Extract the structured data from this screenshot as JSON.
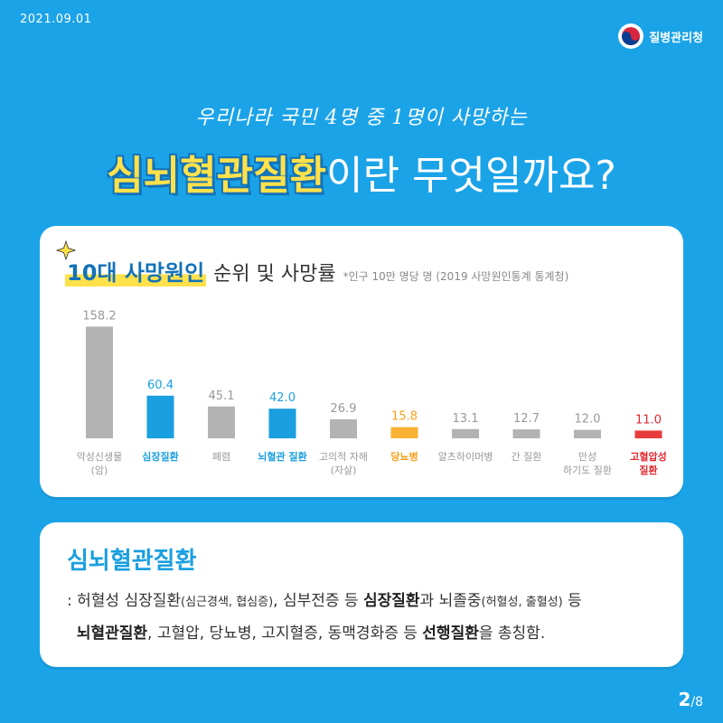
{
  "header": {
    "date": "2021.09.01",
    "org": "질병관리청"
  },
  "hero": {
    "subtitle": "우리나라 국민 4명 중 1명이 사망하는",
    "title_highlight": "심뇌혈관질환",
    "title_rest": "이란 무엇일까요?"
  },
  "chart_card": {
    "heading_highlight": "10대 사망원인",
    "heading_rest": "순위 및 사망률",
    "heading_note": "*인구 10만 명당 명 (2019 사망원인통계 통계청)"
  },
  "chart_data": {
    "type": "bar",
    "categories": [
      "악성신생물 (암)",
      "심장질환",
      "폐렴",
      "뇌혈관 질환",
      "고의적 자해 (자살)",
      "당뇨병",
      "알츠하이머병",
      "간 질환",
      "만성 하기도 질환",
      "고혈압성 질환"
    ],
    "category_lines": [
      [
        "악성신생물",
        "(암)"
      ],
      [
        "심장질환"
      ],
      [
        "폐렴"
      ],
      [
        "뇌혈관 질환"
      ],
      [
        "고의적 자해",
        "(자살)"
      ],
      [
        "당뇨병"
      ],
      [
        "알츠하이머병"
      ],
      [
        "간 질환"
      ],
      [
        "만성",
        "하기도 질환"
      ],
      [
        "고혈압성",
        "질환"
      ]
    ],
    "values": [
      158.2,
      60.4,
      45.1,
      42.0,
      26.9,
      15.8,
      13.1,
      12.7,
      12.0,
      11.0
    ],
    "value_labels": [
      "158.2",
      "60.4",
      "45.1",
      "42.0",
      "26.9",
      "15.8",
      "13.1",
      "12.7",
      "12.0",
      "11.0"
    ],
    "colors": [
      "#b3b3b3",
      "#1a9fe0",
      "#b3b3b3",
      "#1a9fe0",
      "#b3b3b3",
      "#f9b233",
      "#b3b3b3",
      "#b3b3b3",
      "#b3b3b3",
      "#e83c3c"
    ],
    "label_colors": [
      "#999999",
      "#1a9fe0",
      "#999999",
      "#1a9fe0",
      "#999999",
      "#f9a01b",
      "#999999",
      "#999999",
      "#999999",
      "#e3262f"
    ],
    "ylim": [
      0,
      160
    ],
    "grid": false
  },
  "definition": {
    "title": "심뇌혈관질환",
    "p1": ": 허혈성 심장질환",
    "p1_small": "(심근경색, 협심증)",
    "p2": ", 심부전증 등 ",
    "p2_bold": "심장질환",
    "p3": "과 뇌졸중",
    "p3_small": "(허혈성, 출혈성)",
    "p4": " 등",
    "p5_bold": "뇌혈관질환",
    "p6": ", 고혈압, 당뇨병, 고지혈증, 동맥경화증 등 ",
    "p6_bold": "선행질환",
    "p7": "을 총칭함."
  },
  "pagination": {
    "current": "2",
    "total": "/8"
  },
  "colors": {
    "background": "#1ba3e8",
    "accent_yellow": "#ffe14a",
    "accent_blue": "#1a9fe0"
  }
}
